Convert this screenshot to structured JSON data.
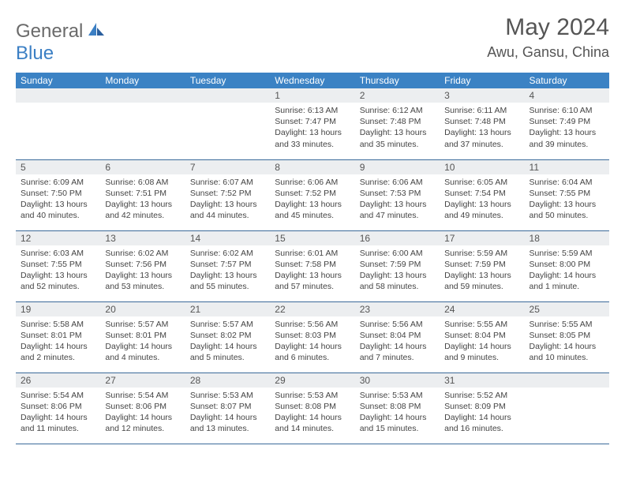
{
  "logo": {
    "text1": "General",
    "text2": "Blue",
    "text1_color": "#6a6a6a",
    "text2_color": "#3b7fc4"
  },
  "title": "May 2024",
  "location": "Awu, Gansu, China",
  "header_bg": "#3b82c4",
  "header_fg": "#ffffff",
  "daynum_bg": "#eceef0",
  "border_color": "#3b6a9a",
  "weekdays": [
    "Sunday",
    "Monday",
    "Tuesday",
    "Wednesday",
    "Thursday",
    "Friday",
    "Saturday"
  ],
  "weeks": [
    [
      null,
      null,
      null,
      {
        "n": "1",
        "sr": "6:13 AM",
        "ss": "7:47 PM",
        "dl": "13 hours and 33 minutes."
      },
      {
        "n": "2",
        "sr": "6:12 AM",
        "ss": "7:48 PM",
        "dl": "13 hours and 35 minutes."
      },
      {
        "n": "3",
        "sr": "6:11 AM",
        "ss": "7:48 PM",
        "dl": "13 hours and 37 minutes."
      },
      {
        "n": "4",
        "sr": "6:10 AM",
        "ss": "7:49 PM",
        "dl": "13 hours and 39 minutes."
      }
    ],
    [
      {
        "n": "5",
        "sr": "6:09 AM",
        "ss": "7:50 PM",
        "dl": "13 hours and 40 minutes."
      },
      {
        "n": "6",
        "sr": "6:08 AM",
        "ss": "7:51 PM",
        "dl": "13 hours and 42 minutes."
      },
      {
        "n": "7",
        "sr": "6:07 AM",
        "ss": "7:52 PM",
        "dl": "13 hours and 44 minutes."
      },
      {
        "n": "8",
        "sr": "6:06 AM",
        "ss": "7:52 PM",
        "dl": "13 hours and 45 minutes."
      },
      {
        "n": "9",
        "sr": "6:06 AM",
        "ss": "7:53 PM",
        "dl": "13 hours and 47 minutes."
      },
      {
        "n": "10",
        "sr": "6:05 AM",
        "ss": "7:54 PM",
        "dl": "13 hours and 49 minutes."
      },
      {
        "n": "11",
        "sr": "6:04 AM",
        "ss": "7:55 PM",
        "dl": "13 hours and 50 minutes."
      }
    ],
    [
      {
        "n": "12",
        "sr": "6:03 AM",
        "ss": "7:55 PM",
        "dl": "13 hours and 52 minutes."
      },
      {
        "n": "13",
        "sr": "6:02 AM",
        "ss": "7:56 PM",
        "dl": "13 hours and 53 minutes."
      },
      {
        "n": "14",
        "sr": "6:02 AM",
        "ss": "7:57 PM",
        "dl": "13 hours and 55 minutes."
      },
      {
        "n": "15",
        "sr": "6:01 AM",
        "ss": "7:58 PM",
        "dl": "13 hours and 57 minutes."
      },
      {
        "n": "16",
        "sr": "6:00 AM",
        "ss": "7:59 PM",
        "dl": "13 hours and 58 minutes."
      },
      {
        "n": "17",
        "sr": "5:59 AM",
        "ss": "7:59 PM",
        "dl": "13 hours and 59 minutes."
      },
      {
        "n": "18",
        "sr": "5:59 AM",
        "ss": "8:00 PM",
        "dl": "14 hours and 1 minute."
      }
    ],
    [
      {
        "n": "19",
        "sr": "5:58 AM",
        "ss": "8:01 PM",
        "dl": "14 hours and 2 minutes."
      },
      {
        "n": "20",
        "sr": "5:57 AM",
        "ss": "8:01 PM",
        "dl": "14 hours and 4 minutes."
      },
      {
        "n": "21",
        "sr": "5:57 AM",
        "ss": "8:02 PM",
        "dl": "14 hours and 5 minutes."
      },
      {
        "n": "22",
        "sr": "5:56 AM",
        "ss": "8:03 PM",
        "dl": "14 hours and 6 minutes."
      },
      {
        "n": "23",
        "sr": "5:56 AM",
        "ss": "8:04 PM",
        "dl": "14 hours and 7 minutes."
      },
      {
        "n": "24",
        "sr": "5:55 AM",
        "ss": "8:04 PM",
        "dl": "14 hours and 9 minutes."
      },
      {
        "n": "25",
        "sr": "5:55 AM",
        "ss": "8:05 PM",
        "dl": "14 hours and 10 minutes."
      }
    ],
    [
      {
        "n": "26",
        "sr": "5:54 AM",
        "ss": "8:06 PM",
        "dl": "14 hours and 11 minutes."
      },
      {
        "n": "27",
        "sr": "5:54 AM",
        "ss": "8:06 PM",
        "dl": "14 hours and 12 minutes."
      },
      {
        "n": "28",
        "sr": "5:53 AM",
        "ss": "8:07 PM",
        "dl": "14 hours and 13 minutes."
      },
      {
        "n": "29",
        "sr": "5:53 AM",
        "ss": "8:08 PM",
        "dl": "14 hours and 14 minutes."
      },
      {
        "n": "30",
        "sr": "5:53 AM",
        "ss": "8:08 PM",
        "dl": "14 hours and 15 minutes."
      },
      {
        "n": "31",
        "sr": "5:52 AM",
        "ss": "8:09 PM",
        "dl": "14 hours and 16 minutes."
      },
      null
    ]
  ],
  "labels": {
    "sunrise": "Sunrise:",
    "sunset": "Sunset:",
    "daylight": "Daylight:"
  }
}
